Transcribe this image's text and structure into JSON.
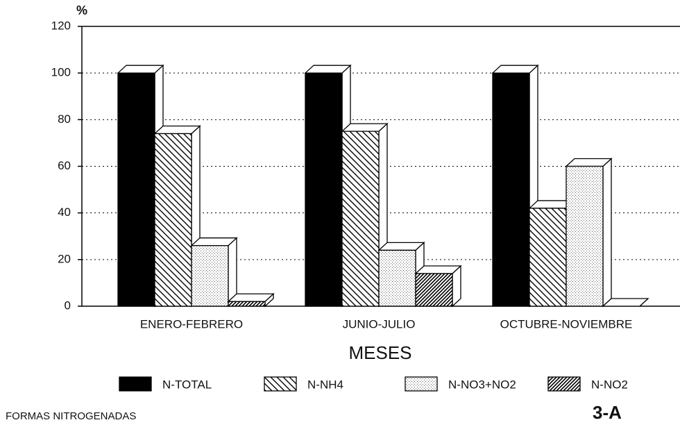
{
  "chart_data": {
    "type": "bar3d",
    "y_label": "%",
    "x_label": "MESES",
    "caption": "FORMAS NITROGENADAS",
    "figure_label": "3-A",
    "categories": [
      "ENERO-FEBRERO",
      "JUNIO-JULIO",
      "OCTUBRE-NOVIEMBRE"
    ],
    "series": [
      {
        "name": "N-TOTAL",
        "color": "#000000",
        "pattern": "solid",
        "values": [
          100,
          100,
          100
        ]
      },
      {
        "name": "N-NH4",
        "color": "#000000",
        "pattern": "hatch",
        "values": [
          74,
          75,
          42
        ]
      },
      {
        "name": "N-NO3+NO2",
        "color": "#000000",
        "pattern": "dots",
        "values": [
          26,
          24,
          60
        ]
      },
      {
        "name": "N-NO2",
        "color": "#000000",
        "pattern": "dense-hatch",
        "values": [
          2,
          14,
          0
        ]
      }
    ],
    "ylim": [
      0,
      120
    ],
    "yticks": [
      0,
      20,
      40,
      60,
      80,
      100,
      120
    ],
    "grid": true
  }
}
